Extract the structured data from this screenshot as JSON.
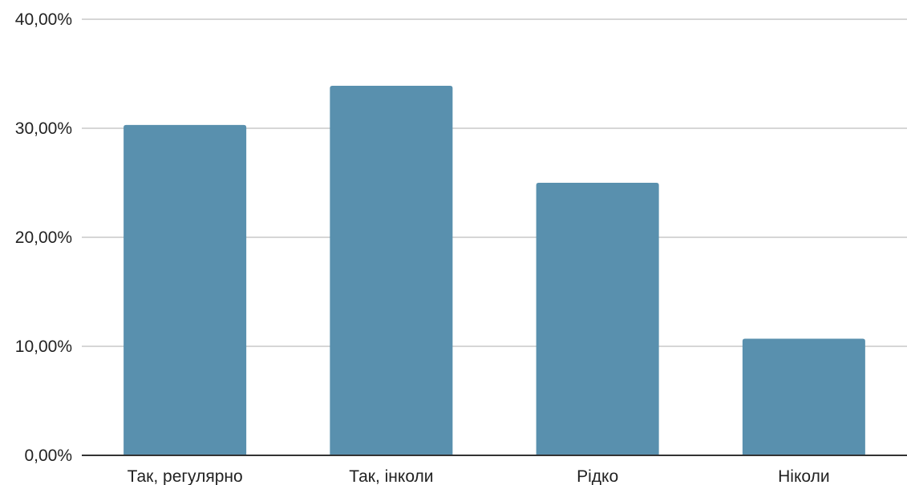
{
  "chart_data": {
    "type": "bar",
    "title": "",
    "xlabel": "",
    "ylabel": "",
    "categories": [
      "Так, регулярно",
      "Так, інколи",
      "Рідко",
      "Ніколи"
    ],
    "values": [
      30.3,
      33.9,
      25.0,
      10.7
    ],
    "ylim": [
      0,
      40
    ],
    "yticks": [
      0,
      10,
      20,
      30,
      40
    ],
    "ytick_labels": [
      "0,00%",
      "10,00%",
      "20,00%",
      "30,00%",
      "40,00%"
    ],
    "grid": true,
    "legend": "none",
    "bar_color": "#5990ae",
    "gridline_color": "#c8c8c8",
    "axis_color": "#333333"
  }
}
